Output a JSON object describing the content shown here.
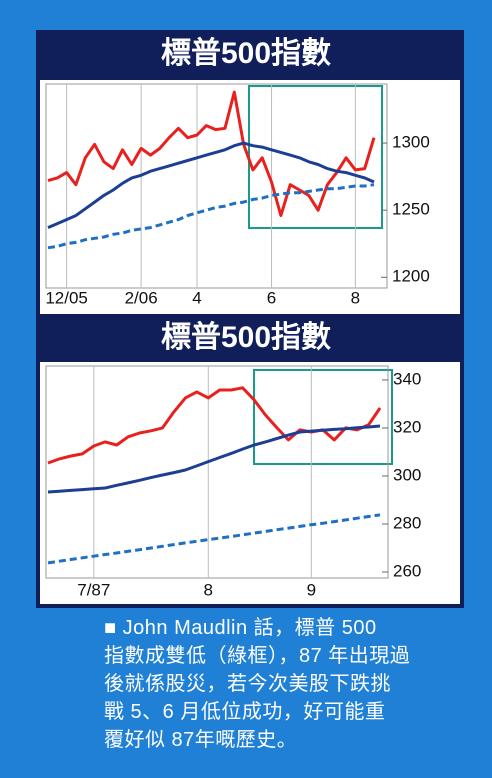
{
  "chart_data": [
    {
      "type": "line",
      "title": "標普500指數",
      "categories": [
        null,
        null,
        "12/05",
        null,
        null,
        null,
        null,
        null,
        null,
        null,
        "2/06",
        null,
        null,
        null,
        null,
        null,
        "4",
        null,
        null,
        null,
        null,
        null,
        null,
        null,
        "6",
        null,
        null,
        null,
        null,
        null,
        null,
        null,
        null,
        "8",
        null,
        null
      ],
      "series": [
        {
          "color": "#e8201e",
          "style": "solid",
          "values": [
            1272,
            1274,
            1278,
            1269,
            1289,
            1299,
            1286,
            1281,
            1295,
            1284,
            1296,
            1291,
            1296,
            1304,
            1311,
            1304,
            1306,
            1313,
            1310,
            1311,
            1338,
            1299,
            1280,
            1289,
            1271,
            1246,
            1269,
            1265,
            1261,
            1250,
            1269,
            1278,
            1289,
            1280,
            1281,
            1304
          ]
        },
        {
          "color": "#1c3f94",
          "style": "solid",
          "values": [
            1237,
            1240,
            1243,
            1246,
            1251,
            1256,
            1261,
            1265,
            1270,
            1274,
            1276,
            1279,
            1281,
            1283,
            1285,
            1287,
            1289,
            1291,
            1293,
            1295,
            1298,
            1300,
            1298,
            1297,
            1295,
            1293,
            1291,
            1289,
            1286,
            1284,
            1281,
            1279,
            1278,
            1276,
            1274,
            1271
          ]
        },
        {
          "color": "#1f6fc4",
          "style": "dashed",
          "values": [
            1222,
            1223,
            1225,
            1226,
            1228,
            1229,
            1230,
            1232,
            1233,
            1235,
            1236,
            1237,
            1239,
            1241,
            1243,
            1246,
            1248,
            1250,
            1252,
            1253,
            1255,
            1256,
            1258,
            1259,
            1261,
            1262,
            1263,
            1263,
            1264,
            1265,
            1266,
            1266,
            1267,
            1268,
            1268,
            1269
          ]
        }
      ],
      "ylim": [
        1192,
        1344
      ],
      "yticks": [
        1200,
        1250,
        1300
      ],
      "grid": true
    },
    {
      "type": "line",
      "title": "標普500指數",
      "categories": [
        null,
        null,
        null,
        null,
        "7/87",
        null,
        null,
        null,
        null,
        null,
        null,
        null,
        null,
        null,
        "8",
        null,
        null,
        null,
        null,
        null,
        null,
        null,
        null,
        "9",
        null,
        null,
        null,
        null,
        null,
        null
      ],
      "series": [
        {
          "color": "#e8201e",
          "style": "solid",
          "values": [
            305.4,
            307.1,
            308.3,
            309.2,
            312.5,
            314.2,
            312.9,
            316.3,
            317.9,
            318.8,
            320,
            326.7,
            332.5,
            335,
            332.5,
            335.8,
            335.8,
            336.7,
            331.7,
            325.4,
            320,
            315,
            319.2,
            318.3,
            319.2,
            315,
            320,
            319.2,
            321.3,
            328.3
          ]
        },
        {
          "color": "#1c3f94",
          "style": "solid",
          "values": [
            293.3,
            293.6,
            294,
            294.3,
            294.7,
            295,
            296.1,
            297.1,
            298.2,
            299.3,
            300.4,
            301.4,
            302.5,
            304.2,
            306,
            307.7,
            309.4,
            311.2,
            312.9,
            314.2,
            315.6,
            317,
            318.3,
            318.7,
            319,
            319.4,
            319.7,
            320.1,
            320.4,
            320.8
          ]
        },
        {
          "color": "#1f6fc4",
          "style": "dashed",
          "values": [
            263.8,
            264.5,
            265.2,
            265.9,
            266.6,
            267.3,
            267.9,
            268.6,
            269.3,
            270,
            270.7,
            271.4,
            272.1,
            272.8,
            273.5,
            274.1,
            274.8,
            275.5,
            276.2,
            276.9,
            277.6,
            278.3,
            279,
            279.7,
            280.3,
            281,
            281.7,
            282.4,
            283.1,
            283.8
          ]
        }
      ],
      "ylim": [
        257.5,
        345.8
      ],
      "yticks": [
        260,
        280,
        300,
        320,
        340
      ],
      "grid": true
    }
  ],
  "caption": {
    "lines": [
      "■ John Maudlin 話，標普 500",
      "指數成雙低（綠框），87 年出現過",
      "後就係股災，若今次美股下跌挑",
      "戰 5、6 月低位成功，好可能重",
      "覆好似 87年嘅歷史。"
    ]
  }
}
